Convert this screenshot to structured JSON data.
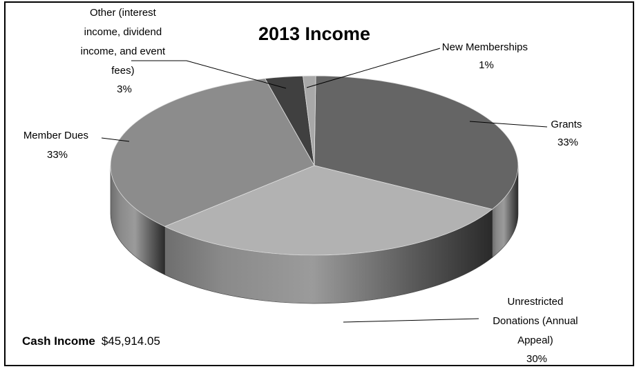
{
  "chart_data": {
    "type": "pie",
    "title": "2013 Income",
    "labels": [
      "Grants",
      "Unrestricted Donations (Annual Appeal)",
      "Member Dues",
      "Other (interest income, dividend income, and event fees)",
      "New Memberships"
    ],
    "values": [
      33,
      30,
      33,
      3,
      1
    ],
    "value_labels": [
      "33%",
      "30%",
      "33%",
      "3%",
      "1%"
    ],
    "legend": "none",
    "colors": [
      "#656565",
      "#b2b2b2",
      "#8c8c8c",
      "#404040",
      "#a8a8a8"
    ]
  },
  "annotation": {
    "bold": "Cash Income",
    "value": "$45,914.05"
  }
}
